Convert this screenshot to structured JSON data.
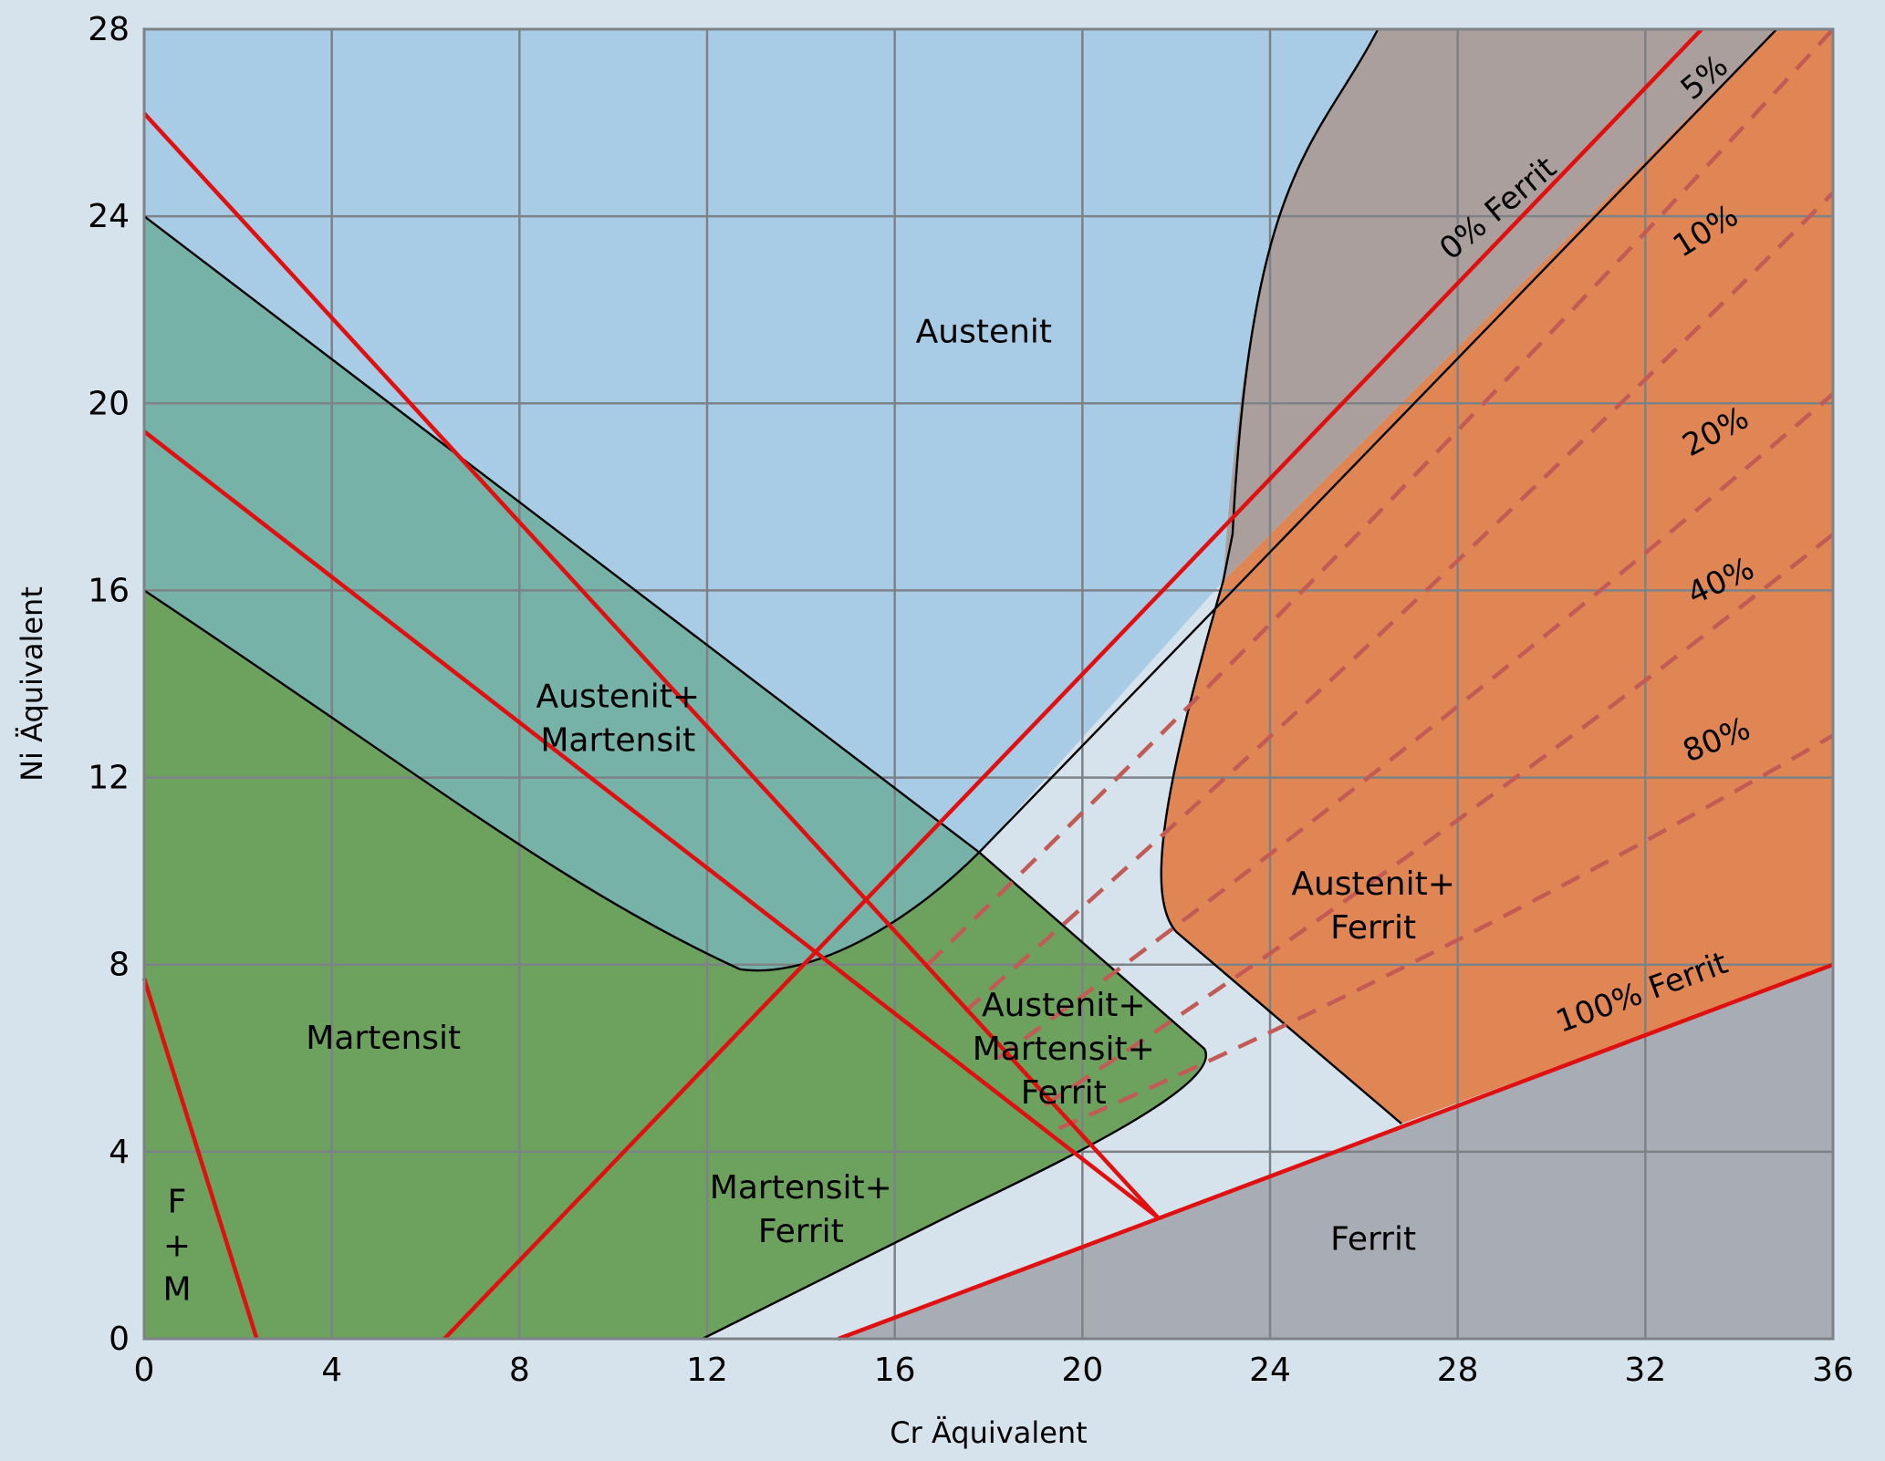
{
  "chart_data": {
    "type": "schaeffler-diagram",
    "xlabel": "Cr Äquivalent",
    "ylabel": "Ni Äquivalent",
    "xlim": [
      0,
      36
    ],
    "ylim": [
      0,
      28
    ],
    "x_ticks": [
      0,
      4,
      8,
      12,
      16,
      20,
      24,
      28,
      32,
      36
    ],
    "y_ticks": [
      0,
      4,
      8,
      12,
      16,
      20,
      24,
      28
    ],
    "grid": true,
    "colors": {
      "background": "#d6e2ec",
      "austenit": "#a8cce6",
      "austenit_martensit": "#76b2a7",
      "martensit": "#6ca25e",
      "austenit_ferrit": "#e08654",
      "upper_ferrit_band": "#ab9f9e",
      "ferrit": "#a8acb5",
      "grid": "#7d8287",
      "red_line": "#e01010",
      "dashed_iso_ferrit": "#c25a56"
    },
    "region_labels": [
      {
        "id": "austenit",
        "lines": [
          "Austenit"
        ],
        "x": 17.9,
        "y": 21.3
      },
      {
        "id": "austenit-martensit",
        "lines": [
          "Austenit+",
          "Martensit"
        ],
        "x": 10.1,
        "y": 13.5
      },
      {
        "id": "martensit",
        "lines": [
          "Martensit"
        ],
        "x": 5.1,
        "y": 6.2
      },
      {
        "id": "austenit-martensit-ferrit",
        "lines": [
          "Austenit+",
          "Martensit+",
          "Ferrit"
        ],
        "x": 19.6,
        "y": 6.9
      },
      {
        "id": "martensit-ferrit",
        "lines": [
          "Martensit+",
          "Ferrit"
        ],
        "x": 14.0,
        "y": 3.0
      },
      {
        "id": "austenit-ferrit",
        "lines": [
          "Austenit+",
          "Ferrit"
        ],
        "x": 26.2,
        "y": 9.5
      },
      {
        "id": "ferrit",
        "lines": [
          "Ferrit"
        ],
        "x": 26.2,
        "y": 1.9
      },
      {
        "id": "f-plus-m",
        "lines": [
          "F",
          "+",
          "M"
        ],
        "x": 0.7,
        "y": 2.7
      }
    ],
    "iso_ferrit_lines": [
      {
        "label": "0% Ferrit",
        "style": "solid",
        "from": [
          14.8,
          0
        ],
        "to": [
          36,
          8
        ]
      },
      {
        "label": "5%",
        "style": "solid",
        "from": [
          17.8,
          10.5
        ],
        "to": [
          34.8,
          28
        ]
      },
      {
        "label": "10%",
        "style": "dashed",
        "from": [
          16.7,
          8.0
        ],
        "to": [
          36,
          28
        ]
      },
      {
        "label": "20%",
        "style": "dashed",
        "from": [
          17.5,
          7.0
        ],
        "to": [
          36,
          24.5
        ]
      },
      {
        "label": "40%",
        "style": "dashed",
        "from": [
          18.2,
          6.0
        ],
        "to": [
          36,
          20.2
        ]
      },
      {
        "label": "80%",
        "style": "dashed",
        "from": [
          19.2,
          5.0
        ],
        "to": [
          36,
          17.2
        ]
      },
      {
        "label": "100% Ferrit",
        "style": "dashed",
        "from": [
          19.5,
          4.5
        ],
        "to": [
          36,
          12.9
        ]
      }
    ],
    "red_lines": [
      {
        "from": [
          0,
          26.2
        ],
        "to": [
          21.6,
          2.6
        ]
      },
      {
        "from": [
          0,
          19.4
        ],
        "to": [
          21.6,
          2.6
        ]
      },
      {
        "from": [
          6.4,
          0
        ],
        "to": [
          33.2,
          28
        ]
      },
      {
        "from": [
          0,
          7.7
        ],
        "to": [
          2.4,
          0
        ]
      },
      {
        "from": [
          14.8,
          0
        ],
        "to": [
          36,
          8
        ]
      }
    ]
  }
}
